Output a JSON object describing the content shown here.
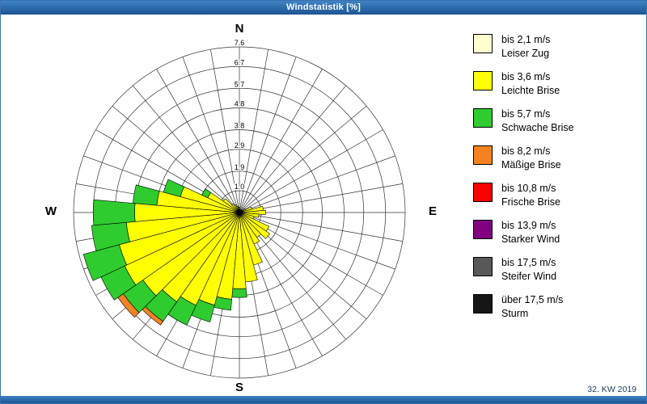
{
  "window": {
    "title": "Windstatistik [%]",
    "footer": "32. KW 2019"
  },
  "compass": {
    "n": "N",
    "e": "E",
    "s": "S",
    "w": "W"
  },
  "colors": {
    "titlebar": "#1d5c9e",
    "border": "#3a72ad",
    "grid": "#333333"
  },
  "chart_data": {
    "type": "windrose",
    "title": "Windstatistik [%]",
    "units": "%",
    "sectors": 36,
    "max_value": 7.6,
    "ring_values": [
      1.0,
      1.9,
      2.9,
      3.8,
      4.8,
      5.7,
      6.7,
      7.6
    ],
    "legend_position": "right",
    "speed_bins": [
      {
        "label": "bis 2,1 m/s",
        "name": "Leiser Zug",
        "color": "#ffffd0"
      },
      {
        "label": "bis 3,6 m/s",
        "name": "Leichte Brise",
        "color": "#ffff00"
      },
      {
        "label": "bis 5,7 m/s",
        "name": "Schwache Brise",
        "color": "#2ecc2e"
      },
      {
        "label": "bis 8,2 m/s",
        "name": "Mäßige Brise",
        "color": "#f58220"
      },
      {
        "label": "bis 10,8 m/s",
        "name": "Frische Brise",
        "color": "#ff0000"
      },
      {
        "label": "bis 13,9 m/s",
        "name": "Starker Wind",
        "color": "#800080"
      },
      {
        "label": "bis 17,5 m/s",
        "name": "Steifer Wind",
        "color": "#585858"
      },
      {
        "label": "über 17,5 m/s",
        "name": "Sturm",
        "color": "#161616"
      }
    ],
    "petals": [
      {
        "dir": 0,
        "values": [
          0.1,
          0.15,
          0.0,
          0.0,
          0.0,
          0.0,
          0.0,
          0.0
        ]
      },
      {
        "dir": 10,
        "values": [
          0.05,
          0.1,
          0.0,
          0.0,
          0.0,
          0.0,
          0.0,
          0.0
        ]
      },
      {
        "dir": 20,
        "values": [
          0.05,
          0.05,
          0.0,
          0.0,
          0.0,
          0.0,
          0.0,
          0.0
        ]
      },
      {
        "dir": 30,
        "values": [
          0.05,
          0.05,
          0.0,
          0.0,
          0.0,
          0.0,
          0.0,
          0.0
        ]
      },
      {
        "dir": 40,
        "values": [
          0.05,
          0.1,
          0.0,
          0.0,
          0.0,
          0.0,
          0.0,
          0.0
        ]
      },
      {
        "dir": 50,
        "values": [
          0.05,
          0.1,
          0.0,
          0.0,
          0.0,
          0.0,
          0.0,
          0.0
        ]
      },
      {
        "dir": 60,
        "values": [
          0.1,
          0.2,
          0.0,
          0.0,
          0.0,
          0.0,
          0.0,
          0.0
        ]
      },
      {
        "dir": 70,
        "values": [
          0.1,
          0.5,
          0.0,
          0.0,
          0.0,
          0.0,
          0.0,
          0.0
        ]
      },
      {
        "dir": 80,
        "values": [
          0.1,
          1.0,
          0.0,
          0.0,
          0.0,
          0.0,
          0.0,
          0.0
        ]
      },
      {
        "dir": 90,
        "values": [
          0.1,
          1.1,
          0.0,
          0.0,
          0.0,
          0.0,
          0.0,
          0.0
        ]
      },
      {
        "dir": 100,
        "values": [
          0.1,
          0.8,
          0.0,
          0.0,
          0.0,
          0.0,
          0.0,
          0.0
        ]
      },
      {
        "dir": 110,
        "values": [
          0.1,
          0.6,
          0.0,
          0.0,
          0.0,
          0.0,
          0.0,
          0.0
        ]
      },
      {
        "dir": 120,
        "values": [
          0.1,
          1.4,
          0.0,
          0.0,
          0.0,
          0.0,
          0.0,
          0.0
        ]
      },
      {
        "dir": 130,
        "values": [
          0.1,
          1.6,
          0.0,
          0.0,
          0.0,
          0.0,
          0.0,
          0.0
        ]
      },
      {
        "dir": 140,
        "values": [
          0.1,
          1.3,
          0.0,
          0.0,
          0.0,
          0.0,
          0.0,
          0.0
        ]
      },
      {
        "dir": 150,
        "values": [
          0.1,
          1.5,
          0.0,
          0.0,
          0.0,
          0.0,
          0.0,
          0.0
        ]
      },
      {
        "dir": 160,
        "values": [
          0.1,
          2.4,
          0.0,
          0.0,
          0.0,
          0.0,
          0.0,
          0.0
        ]
      },
      {
        "dir": 170,
        "values": [
          0.1,
          3.1,
          0.0,
          0.0,
          0.0,
          0.0,
          0.0,
          0.0
        ]
      },
      {
        "dir": 180,
        "values": [
          0.1,
          3.4,
          0.4,
          0.0,
          0.0,
          0.0,
          0.0,
          0.0
        ]
      },
      {
        "dir": 190,
        "values": [
          0.1,
          3.9,
          0.5,
          0.0,
          0.0,
          0.0,
          0.0,
          0.0
        ]
      },
      {
        "dir": 200,
        "values": [
          0.1,
          4.3,
          0.8,
          0.0,
          0.0,
          0.0,
          0.0,
          0.0
        ]
      },
      {
        "dir": 210,
        "values": [
          0.1,
          4.6,
          1.0,
          0.0,
          0.0,
          0.0,
          0.0,
          0.0
        ]
      },
      {
        "dir": 220,
        "values": [
          0.1,
          4.9,
          1.1,
          0.2,
          0.0,
          0.0,
          0.0,
          0.0
        ]
      },
      {
        "dir": 230,
        "values": [
          0.1,
          5.3,
          1.1,
          0.3,
          0.0,
          0.0,
          0.0,
          0.0
        ]
      },
      {
        "dir": 240,
        "values": [
          0.1,
          5.7,
          1.2,
          0.0,
          0.0,
          0.0,
          0.0,
          0.0
        ]
      },
      {
        "dir": 250,
        "values": [
          0.1,
          5.6,
          1.7,
          0.0,
          0.0,
          0.0,
          0.0,
          0.0
        ]
      },
      {
        "dir": 260,
        "values": [
          0.1,
          5.1,
          1.6,
          0.0,
          0.0,
          0.0,
          0.0,
          0.0
        ]
      },
      {
        "dir": 270,
        "values": [
          0.1,
          4.7,
          1.9,
          0.0,
          0.0,
          0.0,
          0.0,
          0.0
        ]
      },
      {
        "dir": 280,
        "values": [
          0.1,
          3.7,
          1.1,
          0.0,
          0.0,
          0.0,
          0.0,
          0.0
        ]
      },
      {
        "dir": 290,
        "values": [
          0.1,
          2.7,
          0.8,
          0.0,
          0.0,
          0.0,
          0.0,
          0.0
        ]
      },
      {
        "dir": 300,
        "values": [
          0.1,
          1.5,
          0.3,
          0.0,
          0.0,
          0.0,
          0.0,
          0.0
        ]
      },
      {
        "dir": 310,
        "values": [
          0.1,
          0.8,
          0.0,
          0.0,
          0.0,
          0.0,
          0.0,
          0.0
        ]
      },
      {
        "dir": 320,
        "values": [
          0.1,
          0.4,
          0.0,
          0.0,
          0.0,
          0.0,
          0.0,
          0.0
        ]
      },
      {
        "dir": 330,
        "values": [
          0.1,
          0.3,
          0.0,
          0.0,
          0.0,
          0.0,
          0.0,
          0.0
        ]
      },
      {
        "dir": 340,
        "values": [
          0.1,
          0.2,
          0.0,
          0.0,
          0.0,
          0.0,
          0.0,
          0.0
        ]
      },
      {
        "dir": 350,
        "values": [
          0.1,
          0.15,
          0.0,
          0.0,
          0.0,
          0.0,
          0.0,
          0.0
        ]
      }
    ]
  }
}
